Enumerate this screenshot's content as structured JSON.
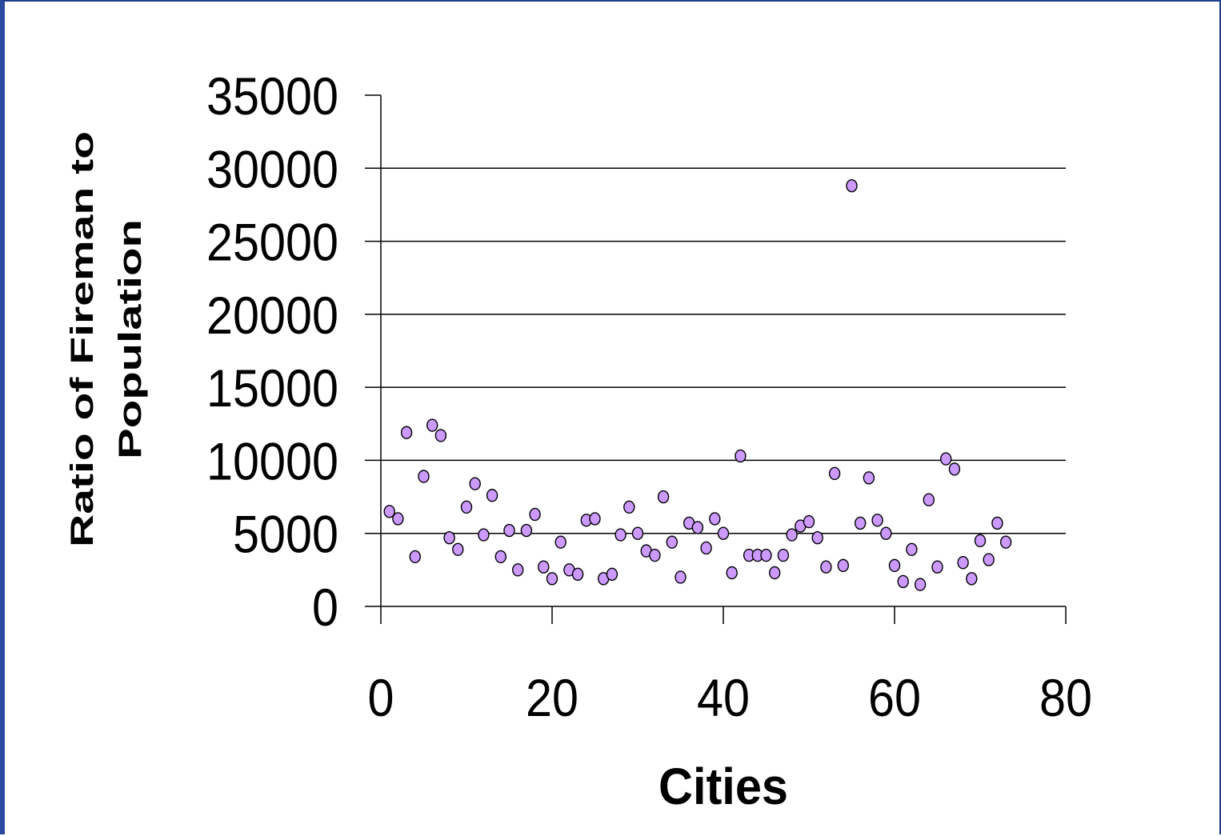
{
  "chart_data": {
    "type": "scatter",
    "title": "",
    "xlabel": "Cities",
    "ylabel_lines": [
      "Ratio of Fireman to",
      "Population"
    ],
    "xlim": [
      0,
      80
    ],
    "ylim": [
      0,
      35000
    ],
    "x_ticks": [
      0,
      20,
      40,
      60,
      80
    ],
    "y_ticks": [
      0,
      5000,
      10000,
      15000,
      20000,
      25000,
      30000,
      35000
    ],
    "x_tick_labels": [
      "0",
      "20",
      "40",
      "60",
      "80"
    ],
    "y_tick_labels": [
      "0",
      "5000",
      "10000",
      "15000",
      "20000",
      "25000",
      "30000",
      "35000"
    ],
    "grid": "horizontal",
    "legend": "none",
    "marker_color": "#cc99ff",
    "marker_edge": "#000000",
    "points": [
      {
        "x": 1,
        "y": 6500
      },
      {
        "x": 2,
        "y": 6000
      },
      {
        "x": 3,
        "y": 11900
      },
      {
        "x": 4,
        "y": 3400
      },
      {
        "x": 5,
        "y": 8900
      },
      {
        "x": 6,
        "y": 12400
      },
      {
        "x": 7,
        "y": 11700
      },
      {
        "x": 8,
        "y": 4700
      },
      {
        "x": 9,
        "y": 3900
      },
      {
        "x": 10,
        "y": 6800
      },
      {
        "x": 11,
        "y": 8400
      },
      {
        "x": 12,
        "y": 4900
      },
      {
        "x": 13,
        "y": 7600
      },
      {
        "x": 14,
        "y": 3400
      },
      {
        "x": 15,
        "y": 5200
      },
      {
        "x": 16,
        "y": 2500
      },
      {
        "x": 17,
        "y": 5200
      },
      {
        "x": 18,
        "y": 6300
      },
      {
        "x": 19,
        "y": 2700
      },
      {
        "x": 20,
        "y": 1900
      },
      {
        "x": 21,
        "y": 4400
      },
      {
        "x": 22,
        "y": 2500
      },
      {
        "x": 23,
        "y": 2200
      },
      {
        "x": 24,
        "y": 5900
      },
      {
        "x": 25,
        "y": 6000
      },
      {
        "x": 26,
        "y": 1900
      },
      {
        "x": 27,
        "y": 2200
      },
      {
        "x": 28,
        "y": 4900
      },
      {
        "x": 29,
        "y": 6800
      },
      {
        "x": 30,
        "y": 5000
      },
      {
        "x": 31,
        "y": 3800
      },
      {
        "x": 32,
        "y": 3500
      },
      {
        "x": 33,
        "y": 7500
      },
      {
        "x": 34,
        "y": 4400
      },
      {
        "x": 35,
        "y": 2000
      },
      {
        "x": 36,
        "y": 5700
      },
      {
        "x": 37,
        "y": 5400
      },
      {
        "x": 38,
        "y": 4000
      },
      {
        "x": 39,
        "y": 6000
      },
      {
        "x": 40,
        "y": 5000
      },
      {
        "x": 41,
        "y": 2300
      },
      {
        "x": 42,
        "y": 10300
      },
      {
        "x": 43,
        "y": 3500
      },
      {
        "x": 44,
        "y": 3500
      },
      {
        "x": 45,
        "y": 3500
      },
      {
        "x": 46,
        "y": 2300
      },
      {
        "x": 47,
        "y": 3500
      },
      {
        "x": 48,
        "y": 4900
      },
      {
        "x": 49,
        "y": 5500
      },
      {
        "x": 50,
        "y": 5800
      },
      {
        "x": 51,
        "y": 4700
      },
      {
        "x": 52,
        "y": 2700
      },
      {
        "x": 53,
        "y": 9100
      },
      {
        "x": 54,
        "y": 2800
      },
      {
        "x": 55,
        "y": 28800
      },
      {
        "x": 56,
        "y": 5700
      },
      {
        "x": 57,
        "y": 8800
      },
      {
        "x": 58,
        "y": 5900
      },
      {
        "x": 59,
        "y": 5000
      },
      {
        "x": 60,
        "y": 2800
      },
      {
        "x": 61,
        "y": 1700
      },
      {
        "x": 62,
        "y": 3900
      },
      {
        "x": 63,
        "y": 1500
      },
      {
        "x": 64,
        "y": 7300
      },
      {
        "x": 65,
        "y": 2700
      },
      {
        "x": 66,
        "y": 10100
      },
      {
        "x": 67,
        "y": 9400
      },
      {
        "x": 68,
        "y": 3000
      },
      {
        "x": 69,
        "y": 1900
      },
      {
        "x": 70,
        "y": 4500
      },
      {
        "x": 71,
        "y": 3200
      },
      {
        "x": 72,
        "y": 5700
      },
      {
        "x": 73,
        "y": 4400
      }
    ]
  }
}
